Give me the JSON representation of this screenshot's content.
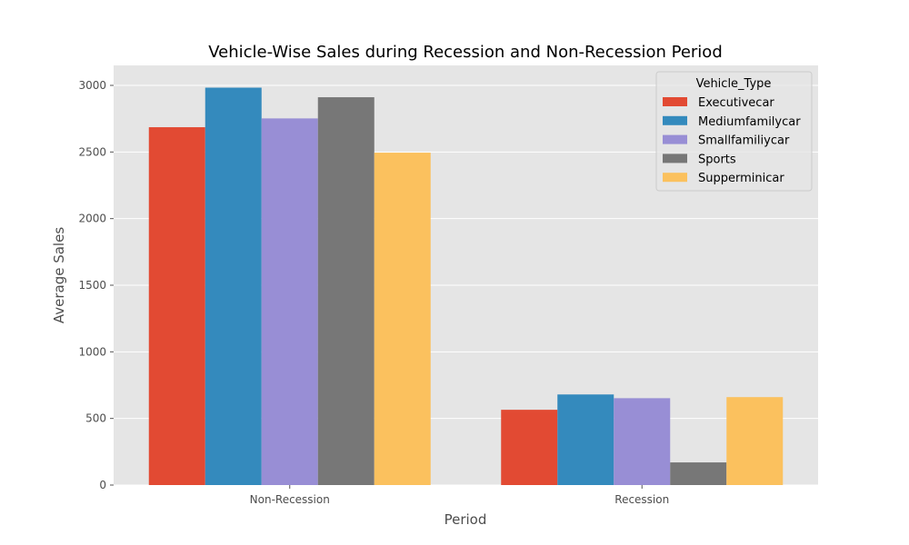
{
  "chart_data": {
    "type": "bar",
    "title": "Vehicle-Wise Sales during Recession and Non-Recession Period",
    "xlabel": "Period",
    "ylabel": "Average Sales",
    "categories": [
      "Non-Recession",
      "Recession"
    ],
    "ylim": [
      0,
      3150
    ],
    "yticks": [
      0,
      500,
      1000,
      1500,
      2000,
      2500,
      3000
    ],
    "grid": true,
    "legend_title": "Vehicle_Type",
    "legend_position": "top-right",
    "series": [
      {
        "name": "Executivecar",
        "color": "#E24A33",
        "values": [
          2686,
          565
        ]
      },
      {
        "name": "Mediumfamilycar",
        "color": "#348ABD",
        "values": [
          2983,
          680
        ]
      },
      {
        "name": "Smallfamiliycar",
        "color": "#988ED5",
        "values": [
          2752,
          652
        ]
      },
      {
        "name": "Sports",
        "color": "#777777",
        "values": [
          2911,
          170
        ]
      },
      {
        "name": "Supperminicar",
        "color": "#FBC15E",
        "values": [
          2495,
          660
        ]
      }
    ]
  }
}
